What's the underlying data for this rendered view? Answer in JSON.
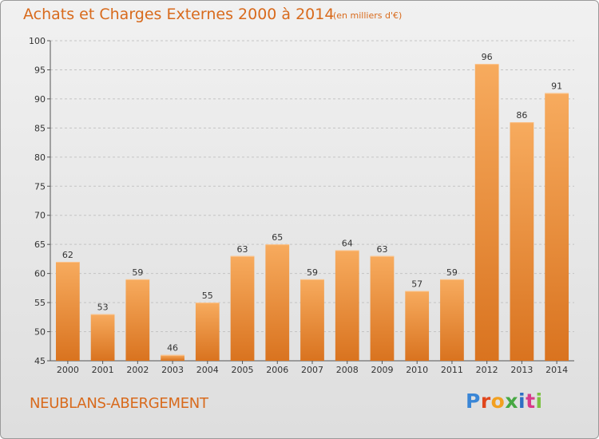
{
  "header": {
    "title": "Achats et Charges Externes 2000 à 2014",
    "subtitle": "(en milliers d'€)"
  },
  "footer": {
    "commune": "NEUBLANS-ABERGEMENT",
    "logo_text": "Proxiti",
    "logo_colors": [
      "#3a86d6",
      "#e0461c",
      "#f2a020",
      "#47a843",
      "#2e6fc4",
      "#d83b8a",
      "#7cc242"
    ]
  },
  "colors": {
    "bar_light": "#f7ab5e",
    "bar_dark": "#d9731f",
    "accent": "#d86a1c"
  },
  "chart_data": {
    "type": "bar",
    "title": "Achats et Charges Externes 2000 à 2014",
    "subtitle": "(en milliers d'€)",
    "categories": [
      "2000",
      "2001",
      "2002",
      "2003",
      "2004",
      "2005",
      "2006",
      "2007",
      "2008",
      "2009",
      "2010",
      "2011",
      "2012",
      "2013",
      "2014"
    ],
    "values": [
      62,
      53,
      59,
      46,
      55,
      63,
      65,
      59,
      64,
      63,
      57,
      59,
      96,
      86,
      91
    ],
    "ylim": [
      45,
      100
    ],
    "yticks": [
      45,
      50,
      55,
      60,
      65,
      70,
      75,
      80,
      85,
      90,
      95,
      100
    ],
    "xlabel": "",
    "ylabel": "",
    "grid": "dashed-horizontal",
    "legend": "none"
  }
}
